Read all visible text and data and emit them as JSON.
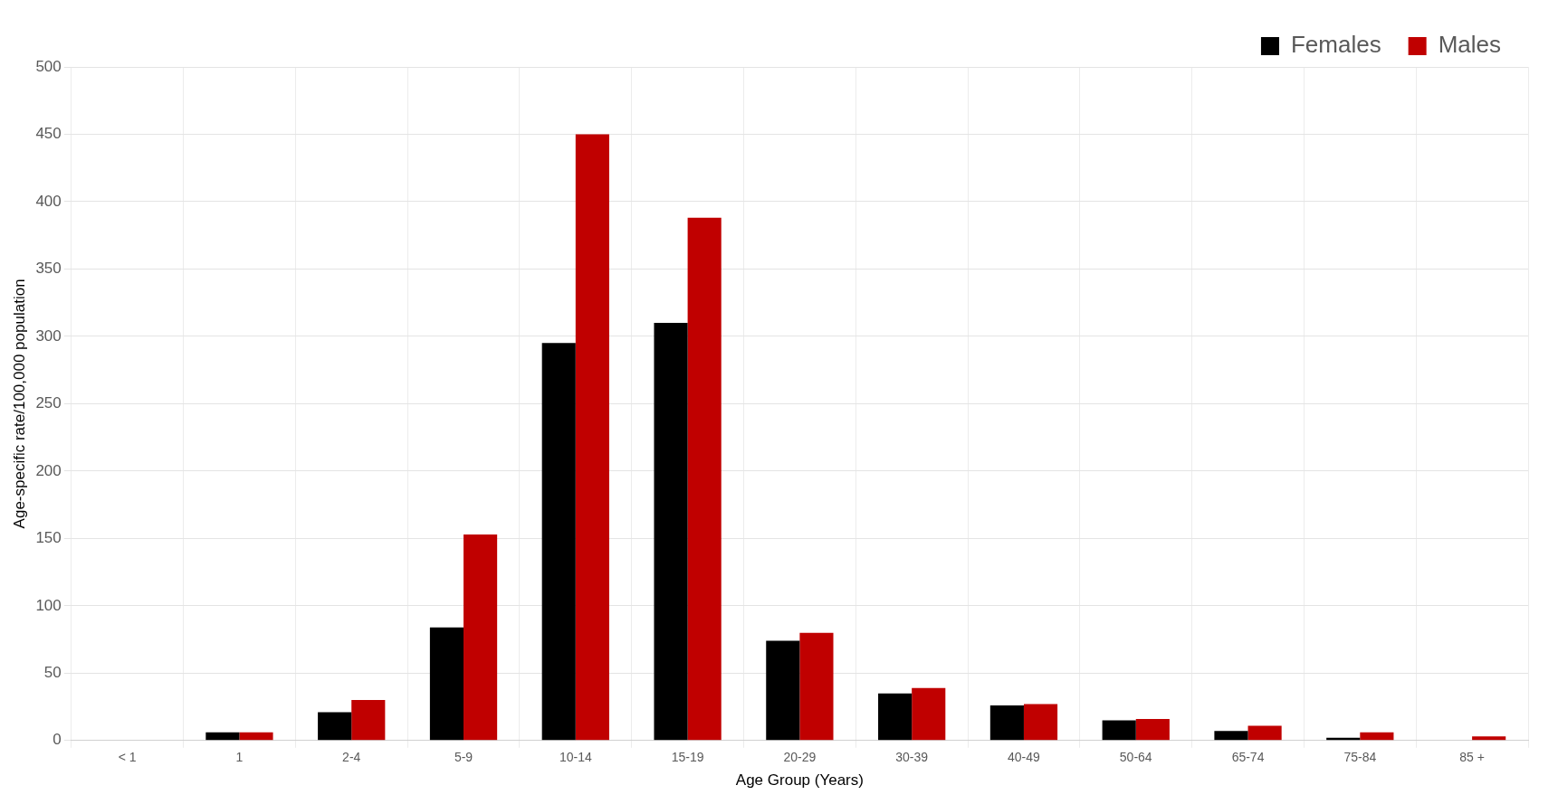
{
  "chart_data": {
    "type": "bar",
    "xlabel": "Age Group (Years)",
    "ylabel": "Age-specific rate/100,000 population",
    "categories": [
      "< 1",
      "1",
      "2-4",
      "5-9",
      "10-14",
      "15-19",
      "20-29",
      "30-39",
      "40-49",
      "50-64",
      "65-74",
      "75-84",
      "85 +"
    ],
    "series": [
      {
        "name": "Females",
        "color": "#000000",
        "values": [
          0,
          6,
          21,
          84,
          295,
          310,
          74,
          35,
          26,
          15,
          7,
          2,
          0
        ]
      },
      {
        "name": "Males",
        "color": "#c00000",
        "values": [
          0,
          6,
          30,
          153,
          450,
          388,
          80,
          39,
          27,
          16,
          11,
          6,
          3
        ]
      }
    ],
    "ylim": [
      0,
      500
    ],
    "yticks": [
      0,
      50,
      100,
      150,
      200,
      250,
      300,
      350,
      400,
      450,
      500
    ],
    "grid": true,
    "legend": "top right"
  }
}
